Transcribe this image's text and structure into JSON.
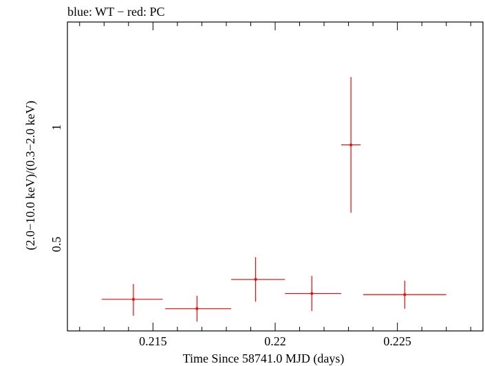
{
  "chart_data": {
    "type": "scatter",
    "title": "blue: WT − red: PC",
    "xlabel": "Time Since 58741.0 MJD (days)",
    "ylabel": "(2.0−10.0 keV)/(0.3−2.0 keV)",
    "xlim": [
      0.2115,
      0.2285
    ],
    "ylim": [
      0.13,
      1.45
    ],
    "x_major_ticks": [
      0.215,
      0.22,
      0.225
    ],
    "x_tick_labels": [
      "0.215",
      "0.22",
      "0.225"
    ],
    "y_major_ticks": [
      0.5,
      1.0
    ],
    "y_tick_labels": [
      "0.5",
      "1"
    ],
    "grid": false,
    "series": [
      {
        "name": "PC",
        "color": "#ff0000",
        "points": [
          {
            "x": 0.2142,
            "xerr_lo": 0.0013,
            "xerr_hi": 0.0012,
            "y": 0.265,
            "yerr_lo": 0.07,
            "yerr_hi": 0.065
          },
          {
            "x": 0.2168,
            "xerr_lo": 0.0013,
            "xerr_hi": 0.0014,
            "y": 0.225,
            "yerr_lo": 0.055,
            "yerr_hi": 0.055
          },
          {
            "x": 0.2192,
            "xerr_lo": 0.001,
            "xerr_hi": 0.0012,
            "y": 0.35,
            "yerr_lo": 0.095,
            "yerr_hi": 0.095
          },
          {
            "x": 0.2215,
            "xerr_lo": 0.0011,
            "xerr_hi": 0.0012,
            "y": 0.29,
            "yerr_lo": 0.075,
            "yerr_hi": 0.075
          },
          {
            "x": 0.2231,
            "xerr_lo": 0.0004,
            "xerr_hi": 0.0004,
            "y": 0.925,
            "yerr_lo": 0.29,
            "yerr_hi": 0.29
          },
          {
            "x": 0.2253,
            "xerr_lo": 0.0017,
            "xerr_hi": 0.0017,
            "y": 0.285,
            "yerr_lo": 0.06,
            "yerr_hi": 0.06
          }
        ]
      }
    ]
  }
}
